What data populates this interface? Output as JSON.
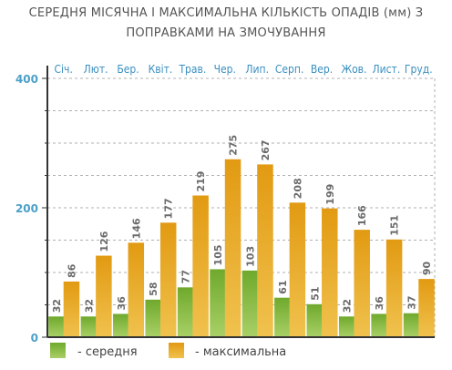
{
  "title_lines": [
    "СЕРЕДНЯ МІСЯЧНА І МАКСИМАЛЬНА КІЛЬКІСТЬ ОПАДІВ (мм) З",
    "ПОПРАВКАМИ НА ЗМОЧУВАННЯ"
  ],
  "colors": {
    "avg": "#8bbd3c",
    "max": "#e6a21e",
    "axis": "#333333",
    "grid": "#b0b0b0",
    "tick": "#4aa0c8"
  },
  "chart_data": {
    "type": "bar",
    "title": "СЕРЕДНЯ МІСЯЧНА І МАКСИМАЛЬНА КІЛЬКІСТЬ ОПАДІВ (мм) З ПОПРАВКАМИ НА ЗМОЧУВАННЯ",
    "categories": [
      "Січ.",
      "Лют.",
      "Бер.",
      "Квіт.",
      "Трав.",
      "Чер.",
      "Лип.",
      "Серп.",
      "Вер.",
      "Жов.",
      "Лист.",
      "Груд."
    ],
    "series": [
      {
        "name": "- середня",
        "values": [
          32,
          32,
          36,
          58,
          77,
          105,
          103,
          61,
          51,
          32,
          36,
          37
        ]
      },
      {
        "name": "- максимальна",
        "values": [
          86,
          126,
          146,
          177,
          219,
          275,
          267,
          208,
          199,
          166,
          151,
          90
        ]
      }
    ],
    "ylim": [
      0,
      400
    ],
    "yticks": [
      0,
      200,
      400
    ],
    "xlabel": "",
    "ylabel": "",
    "grid": true,
    "legend": "bottom"
  }
}
